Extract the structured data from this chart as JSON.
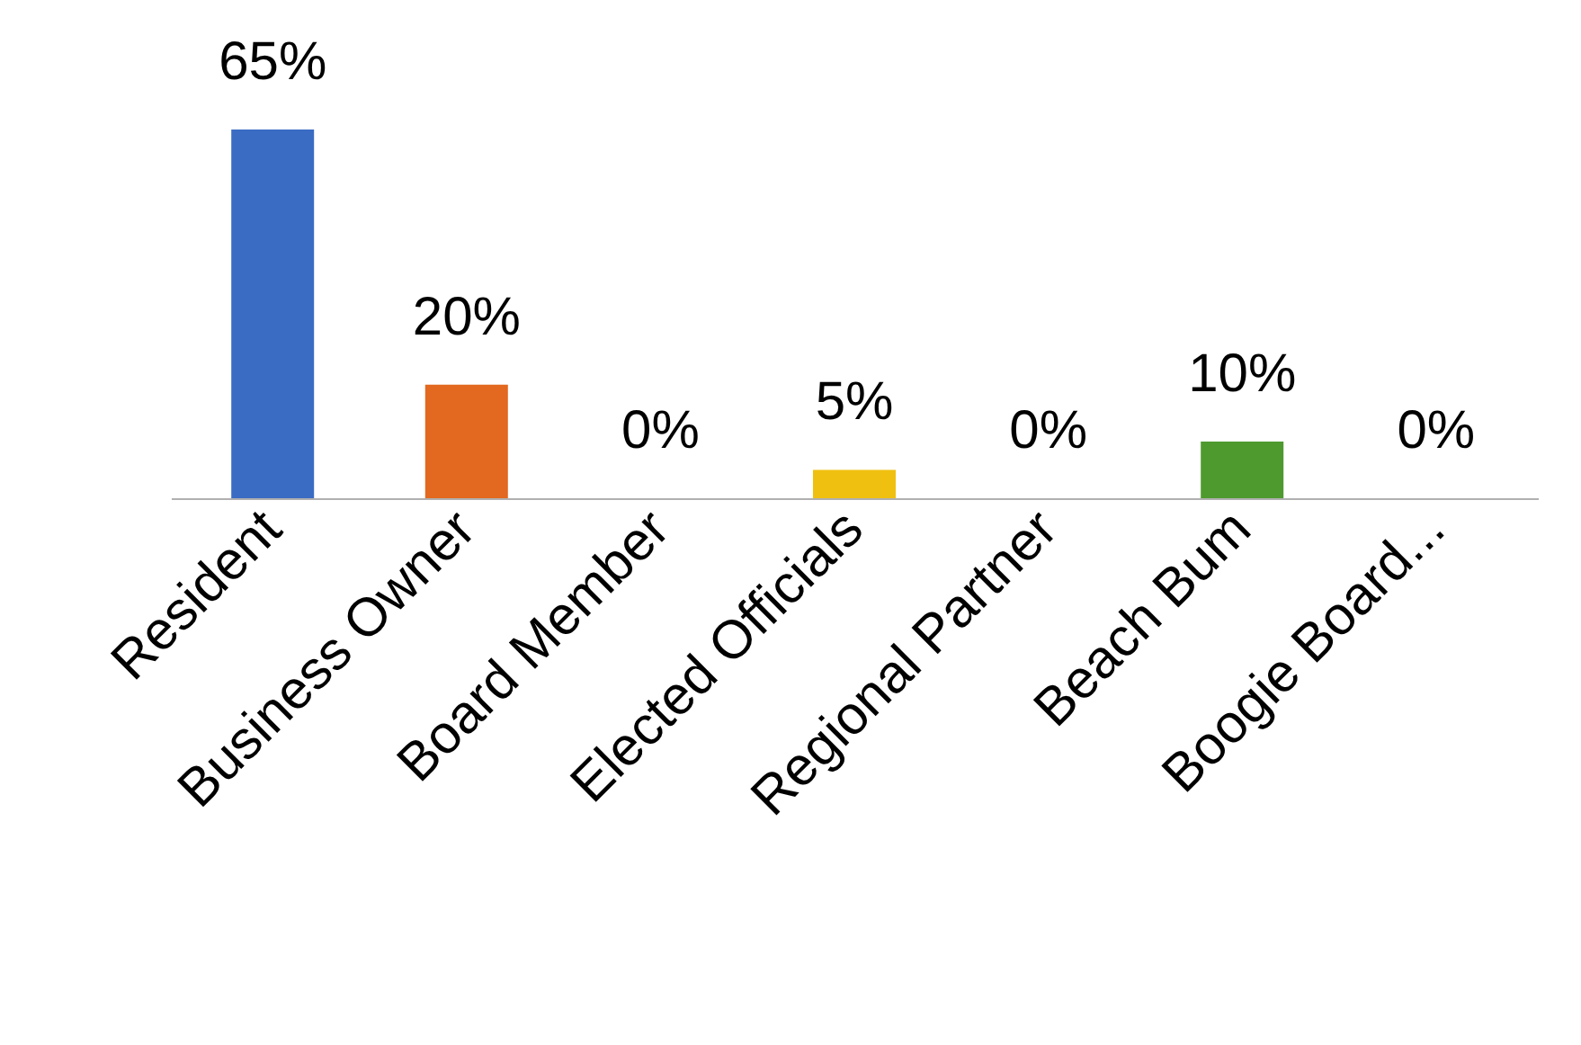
{
  "chart_data": {
    "type": "bar",
    "categories": [
      "Resident",
      "Business Owner",
      "Board Member",
      "Elected Officials",
      "Regional Partner",
      "Beach Bum",
      "Boogie Board..."
    ],
    "values": [
      65,
      20,
      0,
      5,
      0,
      10,
      0
    ],
    "colors": [
      "#3b6cc4",
      "#e2691f",
      "#8c8c8c",
      "#f0c010",
      "#2f74b5",
      "#4e9a2f",
      "#7f8fd0"
    ],
    "value_labels": [
      "65%",
      "20%",
      "0%",
      "5%",
      "0%",
      "10%",
      "0%"
    ],
    "grid": false,
    "legend": false
  }
}
